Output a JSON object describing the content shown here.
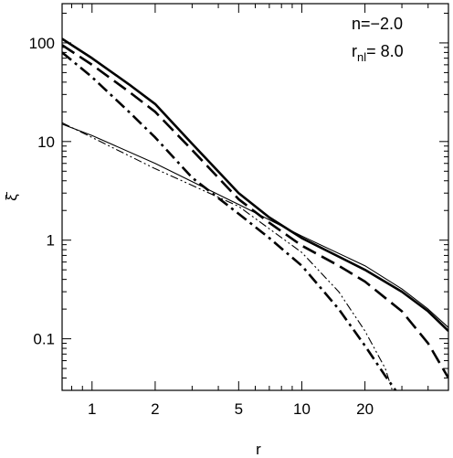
{
  "chart_data": {
    "type": "line",
    "title": "",
    "xlabel": "r",
    "ylabel": "ξ̄",
    "xscale": "log",
    "yscale": "log",
    "xlim": [
      0.72,
      50
    ],
    "ylim": [
      0.03,
      250
    ],
    "x_ticks": [
      1,
      2,
      5,
      10,
      20
    ],
    "x_tick_labels": [
      "1",
      "2",
      "5",
      "10",
      "20"
    ],
    "y_ticks": [
      0.1,
      1,
      10,
      100
    ],
    "y_tick_labels": [
      "0.1",
      "1",
      "10",
      "100"
    ],
    "grid": false,
    "legend": "none",
    "annotations": {
      "n_label": "n=−2.0",
      "r_label_main": "r",
      "r_label_sub": "nl",
      "r_label_value": "=  8.0"
    },
    "series": [
      {
        "style": "thick-solid",
        "x": [
          0.72,
          1,
          1.5,
          2,
          3,
          5,
          7,
          10,
          15,
          20,
          30,
          40,
          50
        ],
        "y": [
          110,
          70,
          38,
          24,
          9.5,
          3.0,
          1.7,
          1.05,
          0.68,
          0.5,
          0.3,
          0.19,
          0.12
        ]
      },
      {
        "style": "thick-dashed",
        "x": [
          0.72,
          1,
          1.5,
          2,
          3,
          5,
          7,
          10,
          15,
          20,
          30,
          40,
          50
        ],
        "y": [
          95,
          60,
          32,
          20,
          8.2,
          2.6,
          1.5,
          0.88,
          0.55,
          0.38,
          0.19,
          0.09,
          0.04
        ]
      },
      {
        "style": "thick-dashdot",
        "x": [
          0.72,
          1,
          1.5,
          2,
          3,
          5,
          7,
          10,
          15,
          20,
          25,
          28
        ],
        "y": [
          80,
          45,
          20,
          11,
          4.3,
          1.85,
          1.05,
          0.55,
          0.2,
          0.085,
          0.042,
          0.03
        ]
      },
      {
        "style": "thin-solid",
        "x": [
          0.72,
          1,
          2,
          5,
          10,
          20,
          30,
          40,
          50
        ],
        "y": [
          15,
          11.5,
          6.0,
          2.3,
          1.1,
          0.55,
          0.32,
          0.2,
          0.13
        ]
      },
      {
        "style": "thin-dashdotdot",
        "x": [
          0.72,
          1,
          2,
          5,
          10,
          15,
          20,
          25,
          27
        ],
        "y": [
          15.5,
          11.0,
          5.3,
          2.2,
          0.75,
          0.3,
          0.12,
          0.05,
          0.03
        ]
      }
    ]
  }
}
